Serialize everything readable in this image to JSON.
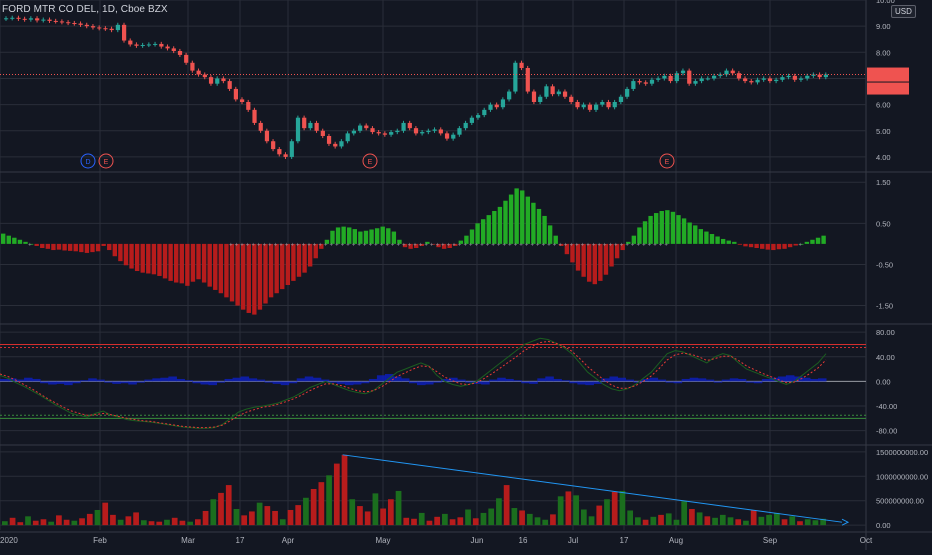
{
  "header": {
    "symbol_title": "FORD MTR CO DEL, 1D, Cboe BZX",
    "currency": "USD"
  },
  "colors": {
    "background": "#131722",
    "grid": "#2a2e39",
    "up": "#26a69a",
    "down": "#ef5350",
    "hist_up": "#22ab25",
    "hist_down": "#b71c1c",
    "rsi_line": "#1b5e20",
    "rsi_signal": "#e53935",
    "tsi_fill": "#0d1eb8",
    "trendline": "#2196f3",
    "level_red": "#d32f2f",
    "level_green": "#388e3c",
    "event_dividend": "#2962ff",
    "event_earnings": "#ef5350"
  },
  "x_axis": {
    "labels": [
      "2020",
      "Feb",
      "Mar",
      "17",
      "Apr",
      "May",
      "Jun",
      "16",
      "Jul",
      "17",
      "Aug",
      "Sep",
      "Oct"
    ]
  },
  "event_markers": [
    "D",
    "E",
    "E",
    "E"
  ],
  "chart_data": [
    {
      "type": "candlestick",
      "pane": "price",
      "ylim": [
        3.5,
        10.0
      ],
      "y_ticks": [
        "10.00",
        "9.00",
        "8.00",
        "7.00",
        "6.00",
        "5.00",
        "4.00"
      ],
      "last_price_line": 7.15,
      "series": [
        {
          "name": "close",
          "values": [
            9.3,
            9.32,
            9.28,
            9.25,
            9.3,
            9.22,
            9.25,
            9.2,
            9.18,
            9.15,
            9.12,
            9.1,
            9.05,
            9.0,
            8.95,
            8.92,
            8.9,
            8.85,
            9.05,
            8.45,
            8.3,
            8.25,
            8.28,
            8.3,
            8.32,
            8.22,
            8.15,
            8.05,
            7.9,
            7.6,
            7.3,
            7.15,
            7.05,
            6.8,
            7.0,
            6.9,
            6.6,
            6.2,
            6.1,
            5.8,
            5.3,
            5.0,
            4.6,
            4.3,
            4.1,
            4.0,
            4.6,
            5.5,
            5.1,
            5.3,
            5.0,
            4.8,
            4.5,
            4.4,
            4.6,
            4.9,
            5.0,
            5.2,
            5.1,
            4.95,
            4.9,
            4.85,
            4.95,
            5.0,
            5.3,
            5.1,
            4.9,
            4.95,
            5.0,
            5.05,
            4.9,
            4.7,
            4.85,
            5.1,
            5.3,
            5.5,
            5.6,
            5.8,
            6.0,
            5.9,
            6.2,
            6.5,
            7.6,
            7.4,
            6.5,
            6.1,
            6.3,
            6.7,
            6.4,
            6.5,
            6.3,
            6.1,
            5.9,
            6.0,
            5.8,
            6.0,
            6.1,
            5.9,
            6.1,
            6.3,
            6.6,
            6.9,
            6.85,
            6.8,
            6.95,
            7.0,
            7.1,
            6.9,
            7.2,
            7.3,
            6.8,
            6.9,
            7.0,
            7.0,
            7.1,
            7.15,
            7.3,
            7.2,
            7.0,
            6.9,
            6.85,
            6.95,
            7.0,
            6.9,
            6.95,
            7.05,
            7.1,
            6.95,
            7.0,
            7.1,
            7.15,
            7.05,
            7.15
          ]
        }
      ]
    },
    {
      "type": "bar",
      "pane": "momentum",
      "ylim": [
        -1.9,
        1.7
      ],
      "y_ticks": [
        "1.50",
        "0.50",
        "-0.50",
        "-1.50"
      ],
      "series": [
        {
          "name": "histogram",
          "values": [
            0.25,
            0.2,
            0.15,
            0.1,
            0.05,
            0.0,
            -0.05,
            -0.1,
            -0.12,
            -0.15,
            -0.14,
            -0.16,
            -0.17,
            -0.18,
            -0.2,
            -0.22,
            -0.2,
            -0.18,
            -0.05,
            -0.15,
            -0.3,
            -0.42,
            -0.52,
            -0.6,
            -0.66,
            -0.7,
            -0.72,
            -0.74,
            -0.78,
            -0.84,
            -0.9,
            -0.94,
            -0.96,
            -1.02,
            -0.92,
            -0.86,
            -0.94,
            -1.04,
            -1.12,
            -1.2,
            -1.3,
            -1.4,
            -1.5,
            -1.6,
            -1.68,
            -1.72,
            -1.6,
            -1.45,
            -1.3,
            -1.2,
            -1.1,
            -1.0,
            -0.9,
            -0.8,
            -0.7,
            -0.55,
            -0.35,
            -0.12,
            0.1,
            0.32,
            0.4,
            0.42,
            0.4,
            0.36,
            0.3,
            0.32,
            0.35,
            0.38,
            0.42,
            0.38,
            0.3,
            0.1,
            -0.08,
            -0.12,
            -0.1,
            -0.05,
            0.05,
            -0.02,
            -0.08,
            -0.12,
            -0.1,
            -0.05,
            0.08,
            0.2,
            0.35,
            0.5,
            0.6,
            0.7,
            0.8,
            0.9,
            1.05,
            1.2,
            1.35,
            1.3,
            1.15,
            1.0,
            0.85,
            0.68,
            0.45,
            0.2,
            -0.05,
            -0.25,
            -0.45,
            -0.65,
            -0.8,
            -0.92,
            -0.98,
            -0.9,
            -0.75,
            -0.55,
            -0.35,
            -0.15,
            0.05,
            0.2,
            0.4,
            0.55,
            0.68,
            0.75,
            0.8,
            0.82,
            0.78,
            0.7,
            0.62,
            0.52,
            0.45,
            0.36,
            0.3,
            0.24,
            0.18,
            0.12,
            0.08,
            0.05,
            -0.02,
            -0.06,
            -0.08,
            -0.1,
            -0.12,
            -0.14,
            -0.15,
            -0.13,
            -0.12,
            -0.08,
            -0.04,
            0.0,
            0.05,
            0.1,
            0.15,
            0.2
          ]
        }
      ]
    },
    {
      "type": "line",
      "pane": "oscillator",
      "ylim": [
        -100,
        90
      ],
      "y_ticks": [
        "80.00",
        "40.00",
        "0.00",
        "-40.00",
        "-80.00"
      ],
      "levels": {
        "upper": 60,
        "lower": -60,
        "upper2": 55,
        "lower2": -55
      },
      "series": [
        {
          "name": "oscillator",
          "values": [
            10,
            5,
            -2,
            -8,
            -15,
            -22,
            -30,
            -38,
            -45,
            -52,
            -55,
            -58,
            -52,
            -48,
            -55,
            -58,
            -62,
            -64,
            -65,
            -66,
            -68,
            -70,
            -72,
            -74,
            -75,
            -76,
            -76,
            -75,
            -70,
            -60,
            -50,
            -45,
            -42,
            -40,
            -38,
            -35,
            -30,
            -25,
            -18,
            -10,
            -5,
            0,
            -5,
            -10,
            -15,
            -18,
            -20,
            -15,
            -5,
            5,
            15,
            20,
            25,
            30,
            25,
            10,
            0,
            -5,
            -8,
            -5,
            0,
            10,
            20,
            30,
            40,
            50,
            60,
            65,
            70,
            68,
            62,
            55,
            45,
            30,
            15,
            5,
            -5,
            -12,
            -15,
            -12,
            -5,
            5,
            15,
            30,
            45,
            50,
            48,
            42,
            36,
            30,
            40,
            45,
            42,
            30,
            20,
            15,
            10,
            5,
            0,
            -5,
            0,
            10,
            20,
            30,
            45
          ]
        },
        {
          "name": "signal",
          "values": [
            12,
            8,
            2,
            -5,
            -12,
            -20,
            -28,
            -35,
            -42,
            -48,
            -52,
            -55,
            -54,
            -52,
            -54,
            -57,
            -60,
            -62,
            -64,
            -65,
            -67,
            -69,
            -71,
            -73,
            -74,
            -75,
            -75,
            -74,
            -71,
            -64,
            -56,
            -50,
            -46,
            -42,
            -40,
            -37,
            -33,
            -28,
            -22,
            -15,
            -9,
            -4,
            -4,
            -7,
            -11,
            -15,
            -17,
            -15,
            -9,
            -1,
            8,
            14,
            20,
            25,
            24,
            16,
            7,
            1,
            -4,
            -5,
            -2,
            5,
            13,
            22,
            31,
            40,
            50,
            57,
            63,
            65,
            62,
            57,
            49,
            37,
            24,
            13,
            3,
            -6,
            -11,
            -11,
            -7,
            0,
            9,
            21,
            35,
            43,
            46,
            44,
            40,
            34,
            37,
            41,
            41,
            34,
            25,
            19,
            13,
            8,
            3,
            -2,
            -1,
            5,
            13,
            22,
            35
          ]
        },
        {
          "name": "histogram",
          "values": [
            4,
            5,
            3,
            6,
            4,
            -3,
            -5,
            -4,
            -6,
            -3,
            2,
            5,
            3,
            -2,
            -4,
            -3,
            -5,
            -2,
            3,
            5,
            6,
            8,
            4,
            2,
            -3,
            -5,
            -6,
            -2,
            4,
            6,
            8,
            5,
            3,
            -2,
            -4,
            -6,
            -3,
            5,
            8,
            6,
            3,
            -2,
            -4,
            -6,
            -5,
            -3,
            4,
            10,
            12,
            8,
            5,
            -3,
            -6,
            -5,
            -2,
            4,
            6,
            3,
            -2,
            -4,
            -5,
            3,
            6,
            4,
            2,
            -3,
            -4,
            5,
            8,
            4,
            2,
            -3,
            -5,
            -6,
            -4,
            5,
            8,
            6,
            3,
            -2,
            4,
            6,
            3,
            -2,
            -3,
            4,
            6,
            5,
            3,
            -2,
            3,
            5,
            4,
            -2,
            -3,
            4,
            6,
            8,
            10,
            8,
            6,
            4,
            5
          ]
        }
      ]
    },
    {
      "type": "bar",
      "pane": "volume",
      "ylim": [
        -100000000,
        1600000000
      ],
      "y_ticks": [
        "1500000000.00",
        "1000000000.00",
        "500000000.00",
        "0.00"
      ],
      "trendline": {
        "from": 1440000000,
        "to": 60000000
      },
      "series": [
        {
          "name": "volume",
          "values": [
            80000000,
            150000000,
            60000000,
            180000000,
            90000000,
            120000000,
            70000000,
            200000000,
            110000000,
            90000000,
            140000000,
            230000000,
            310000000,
            460000000,
            210000000,
            110000000,
            180000000,
            260000000,
            100000000,
            80000000,
            70000000,
            110000000,
            150000000,
            90000000,
            70000000,
            120000000,
            290000000,
            530000000,
            660000000,
            820000000,
            330000000,
            200000000,
            280000000,
            460000000,
            390000000,
            290000000,
            120000000,
            310000000,
            410000000,
            560000000,
            740000000,
            880000000,
            1020000000,
            1260000000,
            1440000000,
            530000000,
            390000000,
            280000000,
            650000000,
            340000000,
            530000000,
            700000000,
            150000000,
            130000000,
            250000000,
            90000000,
            170000000,
            230000000,
            120000000,
            160000000,
            320000000,
            140000000,
            250000000,
            340000000,
            550000000,
            820000000,
            350000000,
            300000000,
            230000000,
            160000000,
            110000000,
            220000000,
            590000000,
            690000000,
            610000000,
            320000000,
            180000000,
            400000000,
            530000000,
            680000000,
            700000000,
            300000000,
            160000000,
            110000000,
            170000000,
            210000000,
            240000000,
            110000000,
            490000000,
            330000000,
            260000000,
            180000000,
            150000000,
            210000000,
            160000000,
            120000000,
            90000000,
            300000000,
            170000000,
            210000000,
            250000000,
            120000000,
            180000000,
            80000000,
            120000000,
            100000000,
            130000000
          ]
        }
      ]
    }
  ]
}
